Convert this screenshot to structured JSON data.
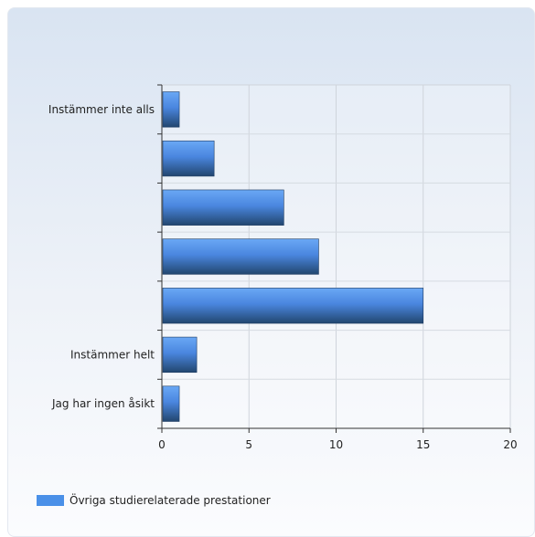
{
  "chart_data": {
    "type": "bar",
    "orientation": "horizontal",
    "categories": [
      "Instämmer inte alls",
      "",
      "",
      "",
      "",
      "Instämmer helt",
      "Jag har ingen åsikt"
    ],
    "series": [
      {
        "name": "Övriga studierelaterade prestationer",
        "values": [
          1,
          3,
          7,
          9,
          15,
          2,
          1
        ]
      }
    ],
    "xlim": [
      0,
      20
    ],
    "xticks": [
      0,
      5,
      10,
      15,
      20
    ],
    "grid": true,
    "legend_position": "bottom-left",
    "bar_color": "#4a90e8"
  }
}
